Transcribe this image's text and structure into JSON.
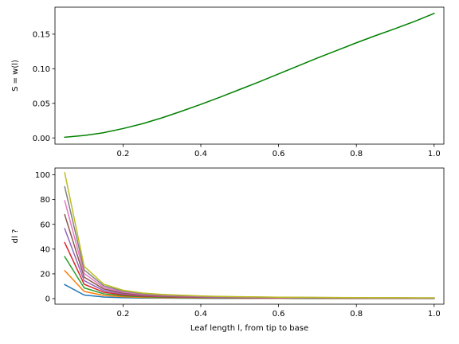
{
  "chart_data": [
    {
      "type": "line",
      "title": "",
      "xlabel": "",
      "ylabel": "S = w(l)",
      "xlim": [
        0.025,
        1.025
      ],
      "ylim": [
        -0.009,
        0.189
      ],
      "xticks": [
        0.2,
        0.4,
        0.6,
        0.8,
        1.0
      ],
      "xtick_labels": [
        "0.2",
        "0.4",
        "0.6",
        "0.8",
        "1.0"
      ],
      "yticks": [
        0.0,
        0.05,
        0.1,
        0.15
      ],
      "ytick_labels": [
        "0.00",
        "0.05",
        "0.10",
        "0.15"
      ],
      "grid": false,
      "series": [
        {
          "color": "#008000",
          "x": [
            0.05,
            0.1,
            0.15,
            0.2,
            0.25,
            0.3,
            0.35,
            0.4,
            0.45,
            0.5,
            0.55,
            0.6,
            0.65,
            0.7,
            0.75,
            0.8,
            0.85,
            0.9,
            0.95,
            1.0
          ],
          "y": [
            0.001,
            0.0035,
            0.0075,
            0.0135,
            0.0205,
            0.029,
            0.0385,
            0.0485,
            0.059,
            0.07,
            0.081,
            0.0925,
            0.104,
            0.1155,
            0.1265,
            0.1375,
            0.148,
            0.158,
            0.1685,
            0.18
          ]
        }
      ]
    },
    {
      "type": "line",
      "title": "",
      "xlabel": "Leaf length l, from tip to base",
      "ylabel": "dl ?",
      "xlim": [
        0.025,
        1.025
      ],
      "ylim": [
        -4.5,
        105.5
      ],
      "xticks": [
        0.2,
        0.4,
        0.6,
        0.8,
        1.0
      ],
      "xtick_labels": [
        "0.2",
        "0.4",
        "0.6",
        "0.8",
        "1.0"
      ],
      "yticks": [
        0,
        20,
        40,
        60,
        80,
        100
      ],
      "ytick_labels": [
        "0",
        "20",
        "40",
        "60",
        "80",
        "100"
      ],
      "grid": false,
      "x": [
        0.05,
        0.1,
        0.15,
        0.2,
        0.25,
        0.3,
        0.35,
        0.4,
        0.45,
        0.5,
        0.55,
        0.6,
        0.65,
        0.7,
        0.75,
        0.8,
        0.85,
        0.9,
        0.95,
        1.0
      ],
      "series": [
        {
          "color": "#1f77b4",
          "values": [
            11.3,
            2.9,
            1.3,
            0.75,
            0.5,
            0.38,
            0.3,
            0.24,
            0.2,
            0.17,
            0.15,
            0.13,
            0.12,
            0.11,
            0.1,
            0.09,
            0.085,
            0.08,
            0.075,
            0.07
          ]
        },
        {
          "color": "#ff7f0e",
          "values": [
            22.6,
            5.8,
            2.6,
            1.5,
            1.0,
            0.76,
            0.6,
            0.48,
            0.4,
            0.34,
            0.3,
            0.26,
            0.24,
            0.22,
            0.2,
            0.18,
            0.17,
            0.16,
            0.15,
            0.14
          ]
        },
        {
          "color": "#2ca02c",
          "values": [
            33.9,
            8.7,
            3.9,
            2.25,
            1.5,
            1.14,
            0.9,
            0.72,
            0.6,
            0.51,
            0.45,
            0.39,
            0.36,
            0.33,
            0.3,
            0.27,
            0.255,
            0.24,
            0.225,
            0.21
          ]
        },
        {
          "color": "#d62728",
          "values": [
            45.2,
            11.6,
            5.2,
            3.0,
            2.0,
            1.52,
            1.2,
            0.96,
            0.8,
            0.68,
            0.6,
            0.52,
            0.48,
            0.44,
            0.4,
            0.36,
            0.34,
            0.32,
            0.3,
            0.28
          ]
        },
        {
          "color": "#9467bd",
          "values": [
            56.5,
            14.5,
            6.5,
            3.75,
            2.5,
            1.9,
            1.5,
            1.2,
            1.0,
            0.85,
            0.75,
            0.65,
            0.6,
            0.55,
            0.5,
            0.45,
            0.425,
            0.4,
            0.375,
            0.35
          ]
        },
        {
          "color": "#8c564b",
          "values": [
            67.8,
            17.4,
            7.8,
            4.5,
            3.0,
            2.28,
            1.8,
            1.44,
            1.2,
            1.02,
            0.9,
            0.78,
            0.72,
            0.66,
            0.6,
            0.54,
            0.51,
            0.48,
            0.45,
            0.42
          ]
        },
        {
          "color": "#e377c2",
          "values": [
            79.1,
            20.3,
            9.1,
            5.25,
            3.5,
            2.66,
            2.1,
            1.68,
            1.4,
            1.19,
            1.05,
            0.91,
            0.84,
            0.77,
            0.7,
            0.63,
            0.595,
            0.56,
            0.525,
            0.49
          ]
        },
        {
          "color": "#7f7f7f",
          "values": [
            90.4,
            23.2,
            10.4,
            6.0,
            4.0,
            3.04,
            2.4,
            1.92,
            1.6,
            1.36,
            1.2,
            1.04,
            0.96,
            0.88,
            0.8,
            0.72,
            0.68,
            0.64,
            0.6,
            0.56
          ]
        },
        {
          "color": "#bcbd22",
          "values": [
            101.7,
            26.1,
            11.7,
            6.75,
            4.5,
            3.42,
            2.7,
            2.16,
            1.8,
            1.53,
            1.35,
            1.17,
            1.08,
            0.99,
            0.9,
            0.81,
            0.765,
            0.72,
            0.675,
            0.63
          ]
        }
      ]
    }
  ]
}
